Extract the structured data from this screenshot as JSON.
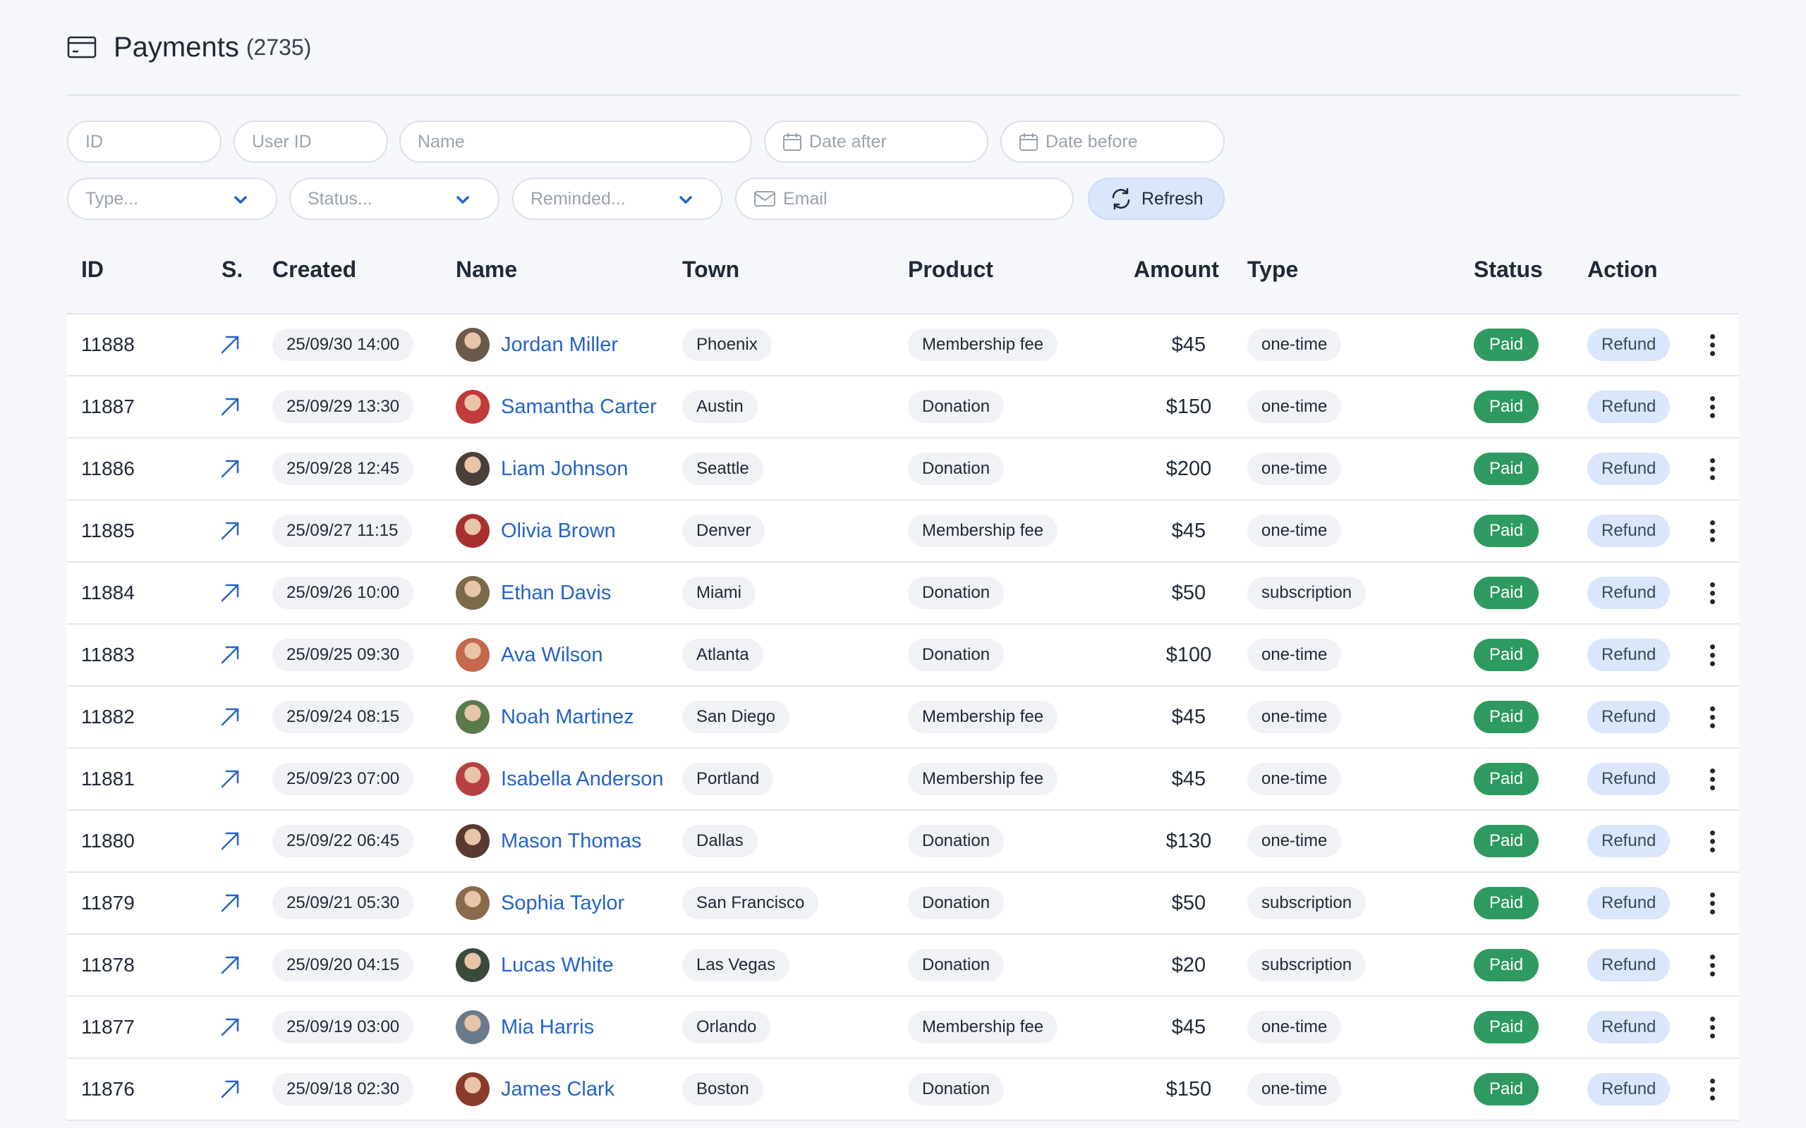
{
  "header": {
    "title": "Payments",
    "count": "(2735)"
  },
  "filters": {
    "id_placeholder": "ID",
    "user_id_placeholder": "User ID",
    "name_placeholder": "Name",
    "date_after_placeholder": "Date after",
    "date_before_placeholder": "Date before",
    "type_placeholder": "Type...",
    "status_placeholder": "Status...",
    "reminded_placeholder": "Reminded...",
    "email_placeholder": "Email",
    "refresh_label": "Refresh"
  },
  "table": {
    "columns": {
      "id": "ID",
      "s": "S.",
      "created": "Created",
      "name": "Name",
      "town": "Town",
      "product": "Product",
      "amount": "Amount",
      "type": "Type",
      "status": "Status",
      "action": "Action"
    },
    "rows": [
      {
        "id": "11888",
        "created": "25/09/30 14:00",
        "name": "Jordan Miller",
        "town": "Phoenix",
        "product": "Membership fee",
        "amount": "$45",
        "type": "one-time",
        "status": "Paid",
        "action": "Refund",
        "avatar_color": "#6b5a4a"
      },
      {
        "id": "11887",
        "created": "25/09/29 13:30",
        "name": "Samantha Carter",
        "town": "Austin",
        "product": "Donation",
        "amount": "$150",
        "type": "one-time",
        "status": "Paid",
        "action": "Refund",
        "avatar_color": "#c03a3a"
      },
      {
        "id": "11886",
        "created": "25/09/28 12:45",
        "name": "Liam Johnson",
        "town": "Seattle",
        "product": "Donation",
        "amount": "$200",
        "type": "one-time",
        "status": "Paid",
        "action": "Refund",
        "avatar_color": "#4a3f3a"
      },
      {
        "id": "11885",
        "created": "25/09/27 11:15",
        "name": "Olivia Brown",
        "town": "Denver",
        "product": "Membership fee",
        "amount": "$45",
        "type": "one-time",
        "status": "Paid",
        "action": "Refund",
        "avatar_color": "#a8302e"
      },
      {
        "id": "11884",
        "created": "25/09/26 10:00",
        "name": "Ethan Davis",
        "town": "Miami",
        "product": "Donation",
        "amount": "$50",
        "type": "subscription",
        "status": "Paid",
        "action": "Refund",
        "avatar_color": "#7a6a4a"
      },
      {
        "id": "11883",
        "created": "25/09/25 09:30",
        "name": "Ava Wilson",
        "town": "Atlanta",
        "product": "Donation",
        "amount": "$100",
        "type": "one-time",
        "status": "Paid",
        "action": "Refund",
        "avatar_color": "#c4684e"
      },
      {
        "id": "11882",
        "created": "25/09/24 08:15",
        "name": "Noah Martinez",
        "town": "San Diego",
        "product": "Membership fee",
        "amount": "$45",
        "type": "one-time",
        "status": "Paid",
        "action": "Refund",
        "avatar_color": "#5a7a4a"
      },
      {
        "id": "11881",
        "created": "25/09/23 07:00",
        "name": "Isabella Anderson",
        "town": "Portland",
        "product": "Membership fee",
        "amount": "$45",
        "type": "one-time",
        "status": "Paid",
        "action": "Refund",
        "avatar_color": "#b84040"
      },
      {
        "id": "11880",
        "created": "25/09/22 06:45",
        "name": "Mason Thomas",
        "town": "Dallas",
        "product": "Donation",
        "amount": "$130",
        "type": "one-time",
        "status": "Paid",
        "action": "Refund",
        "avatar_color": "#5a3a30"
      },
      {
        "id": "11879",
        "created": "25/09/21 05:30",
        "name": "Sophia Taylor",
        "town": "San Francisco",
        "product": "Donation",
        "amount": "$50",
        "type": "subscription",
        "status": "Paid",
        "action": "Refund",
        "avatar_color": "#8a6a4a"
      },
      {
        "id": "11878",
        "created": "25/09/20 04:15",
        "name": "Lucas White",
        "town": "Las Vegas",
        "product": "Donation",
        "amount": "$20",
        "type": "subscription",
        "status": "Paid",
        "action": "Refund",
        "avatar_color": "#3a4a3a"
      },
      {
        "id": "11877",
        "created": "25/09/19 03:00",
        "name": "Mia Harris",
        "town": "Orlando",
        "product": "Membership fee",
        "amount": "$45",
        "type": "one-time",
        "status": "Paid",
        "action": "Refund",
        "avatar_color": "#6a7a8a"
      },
      {
        "id": "11876",
        "created": "25/09/18 02:30",
        "name": "James Clark",
        "town": "Boston",
        "product": "Donation",
        "amount": "$150",
        "type": "one-time",
        "status": "Paid",
        "action": "Refund",
        "avatar_color": "#8a3a2a"
      }
    ]
  },
  "colors": {
    "link": "#2563c9",
    "paid": "#2e9a61",
    "refund_bg": "#d9e6fb",
    "chip_bg": "#f0f2f5"
  }
}
